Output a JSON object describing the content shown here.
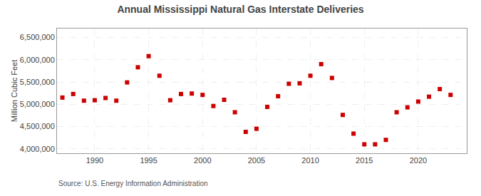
{
  "chart_data": {
    "type": "scatter",
    "title": "Annual Mississippi Natural Gas Interstate Deliveries",
    "ylabel": "Million Cubic Feet",
    "annotations": [
      "Source: U.S. Energy Information Administration"
    ],
    "x": [
      1987,
      1988,
      1989,
      1990,
      1991,
      1992,
      1993,
      1994,
      1995,
      1996,
      1997,
      1998,
      1999,
      2000,
      2001,
      2002,
      2003,
      2004,
      2005,
      2006,
      2007,
      2008,
      2009,
      2010,
      2011,
      2012,
      2013,
      2014,
      2015,
      2016,
      2017,
      2018,
      2019,
      2020,
      2021,
      2022,
      2023
    ],
    "values": [
      5150000,
      5230000,
      5080000,
      5090000,
      5140000,
      5080000,
      5490000,
      5830000,
      6080000,
      5640000,
      5090000,
      5230000,
      5240000,
      5210000,
      4960000,
      5100000,
      4820000,
      4380000,
      4450000,
      4940000,
      5180000,
      5460000,
      5470000,
      5640000,
      5900000,
      5590000,
      4760000,
      4340000,
      4100000,
      4100000,
      4200000,
      4820000,
      4930000,
      5060000,
      5170000,
      5340000,
      5210000
    ],
    "color": "#cc0000",
    "marker": "square",
    "xlim": [
      1986.5,
      2024.5
    ],
    "ylim": [
      3900000,
      6700000
    ],
    "xticks": [
      1990,
      1995,
      2000,
      2005,
      2010,
      2015,
      2020
    ],
    "yticks": [
      {
        "value": 4000000,
        "label": "4,000,000"
      },
      {
        "value": 4500000,
        "label": "4,500,000"
      },
      {
        "value": 5000000,
        "label": "5,000,000"
      },
      {
        "value": 5500000,
        "label": "5,500,000"
      },
      {
        "value": 6000000,
        "label": "6,000,000"
      },
      {
        "value": 6500000,
        "label": "6,500,000"
      }
    ],
    "grid": true
  }
}
